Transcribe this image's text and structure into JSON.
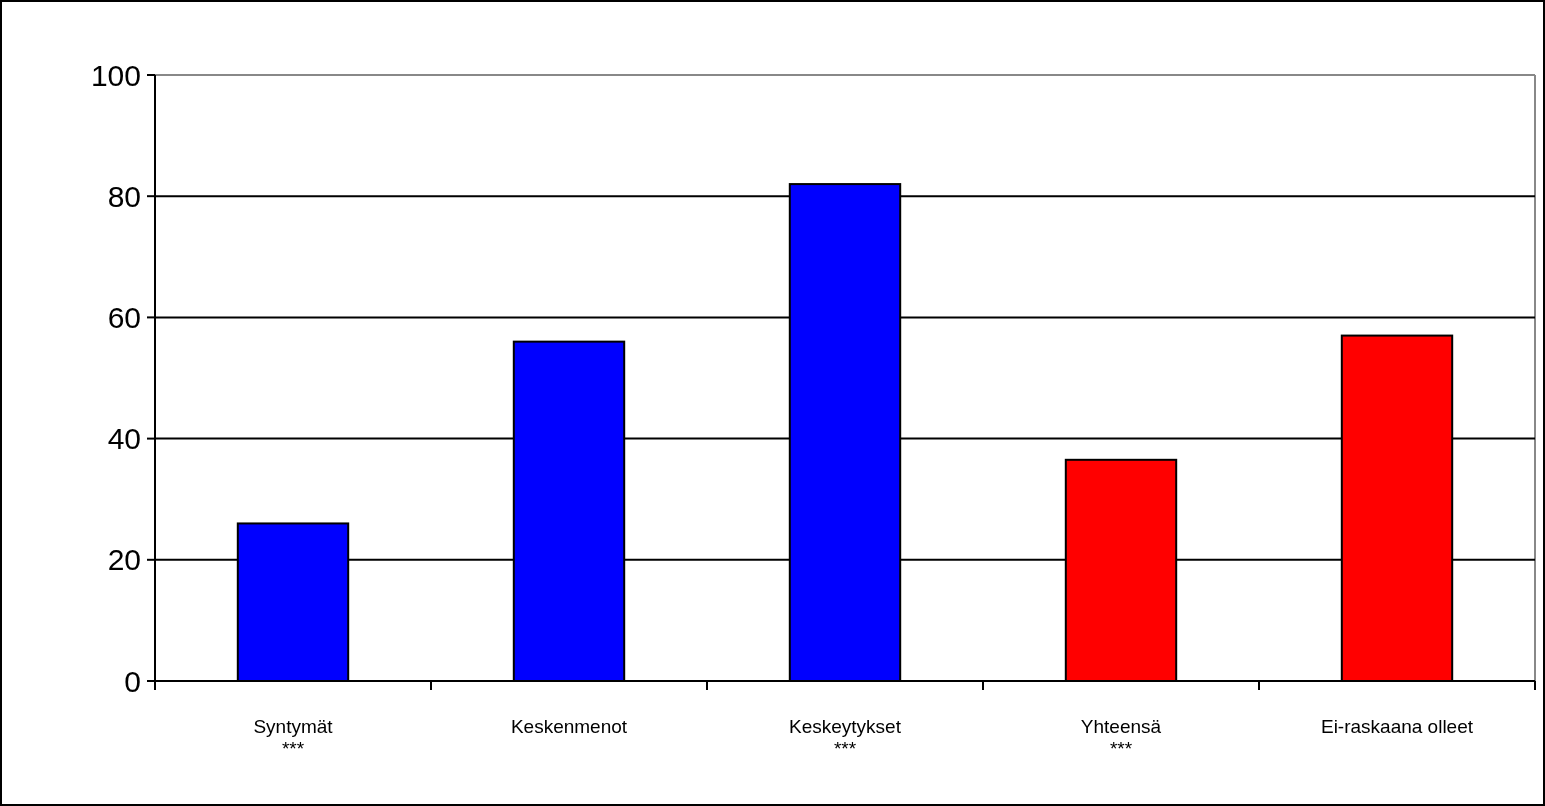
{
  "chart_data": {
    "type": "bar",
    "categories": [
      "Syntymät\n***",
      "Keskenmenot",
      "Keskeytykset\n***",
      "Yhteensä\n***",
      "Ei-raskaana olleet"
    ],
    "values": [
      26,
      56,
      82,
      36.5,
      57
    ],
    "colors": [
      "#0000ff",
      "#0000ff",
      "#0000ff",
      "#ff0000",
      "#ff0000"
    ],
    "ylim": [
      0,
      100
    ],
    "yticks": [
      0,
      20,
      40,
      60,
      80,
      100
    ],
    "grid": "y"
  }
}
